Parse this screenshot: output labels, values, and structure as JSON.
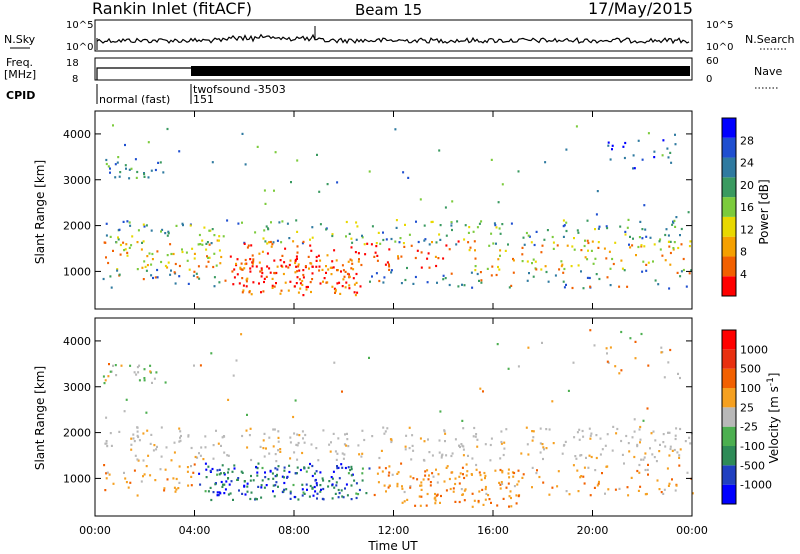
{
  "header": {
    "station": "Rankin Inlet (fitACF)",
    "beam": "Beam 15",
    "date": "17/May/2015"
  },
  "params": {
    "nsky_label": "N.Sky",
    "nsearch_label": "N.Search",
    "freq_label_1": "Freq.",
    "freq_label_2": "[MHz]",
    "nave_label": "Nave",
    "cpid_label": "CPID",
    "nsky_ticks": [
      "10^5",
      "10^0"
    ],
    "nsearch_ticks": [
      "10^5",
      "10^0"
    ],
    "freq_ticks": [
      "18",
      "8"
    ],
    "nave_ticks": [
      "60",
      "0"
    ],
    "cpid_modes": [
      "normal (fast)",
      "151",
      "twofsound -3503"
    ]
  },
  "colors": {
    "power_scale": [
      "#0000ff",
      "#1f4fd0",
      "#2f7aa0",
      "#3a9a60",
      "#7ccb3c",
      "#e8d800",
      "#f5a000",
      "#f26000",
      "#ff0000"
    ],
    "velocity_scale": [
      "#0000ff",
      "#2040c0",
      "#2e8b57",
      "#4caf50",
      "#b8b8b8",
      "#f5a020",
      "#f26000",
      "#e83010",
      "#ff0000"
    ]
  },
  "chart_data": [
    {
      "type": "heatmap",
      "name": "power",
      "xlabel": "Time UT",
      "ylabel": "Slant Range [km]",
      "xlim": [
        0,
        24
      ],
      "ylim": [
        180,
        4500
      ],
      "yticks": [
        "1000",
        "2000",
        "3000",
        "4000"
      ],
      "xticks": [
        "00:00",
        "04:00",
        "08:00",
        "12:00",
        "16:00",
        "20:00",
        "00:00"
      ],
      "colorbar": {
        "label": "Power [dB]",
        "ticks": [
          "4",
          "8",
          "12",
          "16",
          "20",
          "24",
          "28"
        ],
        "range": [
          0,
          30
        ]
      }
    },
    {
      "type": "heatmap",
      "name": "velocity",
      "xlabel": "Time UT",
      "ylabel": "Slant Range [km]",
      "xlim": [
        0,
        24
      ],
      "ylim": [
        180,
        4500
      ],
      "yticks": [
        "1000",
        "2000",
        "3000",
        "4000"
      ],
      "xticks": [
        "00:00",
        "04:00",
        "08:00",
        "12:00",
        "16:00",
        "20:00",
        "00:00"
      ],
      "colorbar": {
        "label": "Velocity [m s^-1]",
        "ticks": [
          "1000",
          "500",
          "100",
          "25",
          "-25",
          "-100",
          "-500",
          "-1000"
        ]
      }
    }
  ]
}
